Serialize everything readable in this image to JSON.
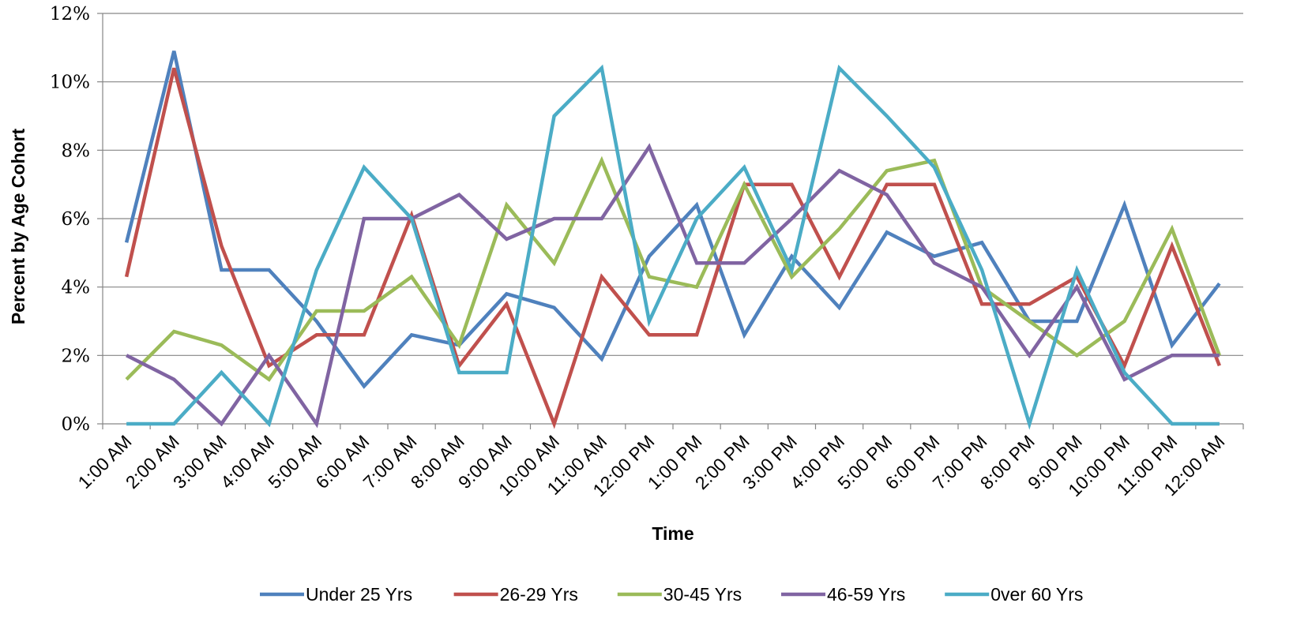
{
  "chart_data": {
    "type": "line",
    "title": "",
    "xlabel": "Time",
    "ylabel": "Percent by Age Cohort",
    "ylim": [
      0,
      12
    ],
    "y_ticks": [
      "0%",
      "2%",
      "4%",
      "6%",
      "8%",
      "10%",
      "12%"
    ],
    "grid": "horizontal",
    "legend_position": "bottom",
    "categories": [
      "1:00 AM",
      "2:00 AM",
      "3:00 AM",
      "4:00 AM",
      "5:00 AM",
      "6:00 AM",
      "7:00 AM",
      "8:00 AM",
      "9:00 AM",
      "10:00 AM",
      "11:00 AM",
      "12:00 PM",
      "1:00 PM",
      "2:00 PM",
      "3:00 PM",
      "4:00 PM",
      "5:00 PM",
      "6:00 PM",
      "7:00 PM",
      "8:00 PM",
      "9:00 PM",
      "10:00 PM",
      "11:00 PM",
      "12:00 AM"
    ],
    "series": [
      {
        "name": "Under 25 Yrs",
        "color": "#4F81BD",
        "values": [
          5.3,
          10.9,
          4.5,
          4.5,
          3.0,
          1.1,
          2.6,
          2.3,
          3.8,
          3.4,
          1.9,
          4.9,
          6.4,
          2.6,
          4.9,
          3.4,
          5.6,
          4.9,
          5.3,
          3.0,
          3.0,
          6.4,
          2.3,
          4.1
        ]
      },
      {
        "name": "26-29 Yrs",
        "color": "#C0504D",
        "values": [
          4.3,
          10.4,
          5.2,
          1.7,
          2.6,
          2.6,
          6.1,
          1.7,
          3.5,
          0.0,
          4.3,
          2.6,
          2.6,
          7.0,
          7.0,
          4.3,
          7.0,
          7.0,
          3.5,
          3.5,
          4.3,
          1.7,
          5.2,
          1.7
        ]
      },
      {
        "name": "30-45 Yrs",
        "color": "#9BBB59",
        "values": [
          1.3,
          2.7,
          2.3,
          1.3,
          3.3,
          3.3,
          4.3,
          2.3,
          6.4,
          4.7,
          7.7,
          4.3,
          4.0,
          7.0,
          4.3,
          5.7,
          7.4,
          7.7,
          4.0,
          3.0,
          2.0,
          3.0,
          5.7,
          2.0
        ]
      },
      {
        "name": "46-59 Yrs",
        "color": "#8064A2",
        "values": [
          2.0,
          1.3,
          0.0,
          2.0,
          0.0,
          6.0,
          6.0,
          6.7,
          5.4,
          6.0,
          6.0,
          8.1,
          4.7,
          4.7,
          6.0,
          7.4,
          6.7,
          4.7,
          4.0,
          2.0,
          4.0,
          1.3,
          2.0,
          2.0
        ]
      },
      {
        "name": "0ver 60 Yrs",
        "color": "#4BACC6",
        "values": [
          0.0,
          0.0,
          1.5,
          0.0,
          4.5,
          7.5,
          6.0,
          1.5,
          1.5,
          9.0,
          10.4,
          3.0,
          6.0,
          7.5,
          4.5,
          10.4,
          9.0,
          7.5,
          4.5,
          0.0,
          4.5,
          1.5,
          0.0,
          0.0
        ]
      }
    ]
  }
}
